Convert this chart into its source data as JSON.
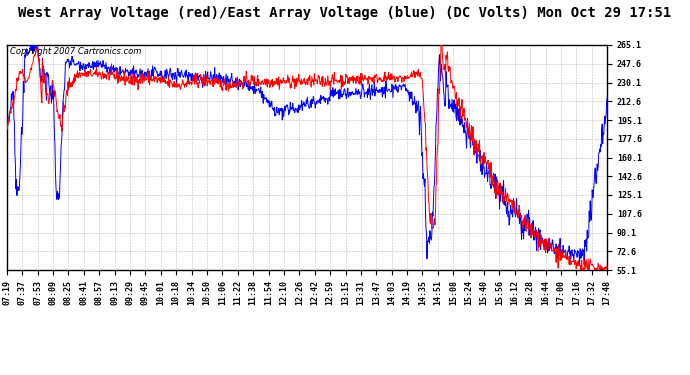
{
  "title": "West Array Voltage (red)/East Array Voltage (blue) (DC Volts) Mon Oct 29 17:51",
  "copyright": "Copyright 2007 Cartronics.com",
  "bg_color": "#ffffff",
  "plot_bg_color": "#ffffff",
  "grid_color": "#bbbbbb",
  "yticks": [
    55.1,
    72.6,
    90.1,
    107.6,
    125.1,
    142.6,
    160.1,
    177.6,
    195.1,
    212.6,
    230.1,
    247.6,
    265.1
  ],
  "ylim": [
    55.1,
    265.1
  ],
  "xtick_labels": [
    "07:19",
    "07:37",
    "07:53",
    "08:09",
    "08:25",
    "08:41",
    "08:57",
    "09:13",
    "09:29",
    "09:45",
    "10:01",
    "10:18",
    "10:34",
    "10:50",
    "11:06",
    "11:22",
    "11:38",
    "11:54",
    "12:10",
    "12:26",
    "12:42",
    "12:59",
    "13:15",
    "13:31",
    "13:47",
    "14:03",
    "14:19",
    "14:35",
    "14:51",
    "15:08",
    "15:24",
    "15:40",
    "15:56",
    "16:12",
    "16:28",
    "16:44",
    "17:00",
    "17:16",
    "17:32",
    "17:48"
  ],
  "red_color": "#ff0000",
  "blue_color": "#0000ff",
  "title_fontsize": 10,
  "copyright_fontsize": 6,
  "tick_fontsize": 6,
  "linewidth": 0.7
}
